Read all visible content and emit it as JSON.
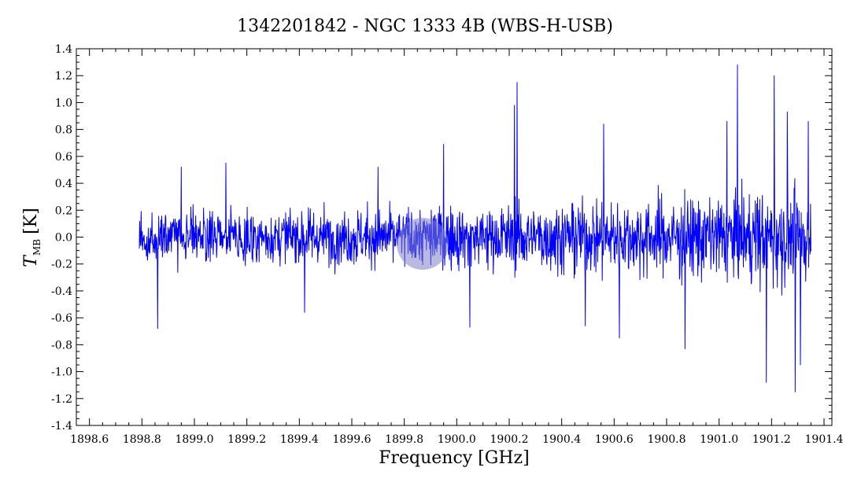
{
  "chart_data": {
    "type": "line",
    "title": "1342201842 - NGC 1333 4B (WBS-H-USB)",
    "xlabel": "Frequency [GHz]",
    "ylabel_main": "T",
    "ylabel_sub": "MB",
    "ylabel_unit": "[K]",
    "xlim": [
      1898.55,
      1901.43
    ],
    "ylim": [
      -1.4,
      1.4
    ],
    "x_ticks": [
      "1898.6",
      "1898.8",
      "1899.0",
      "1899.2",
      "1899.4",
      "1899.6",
      "1899.8",
      "1900.0",
      "1900.2",
      "1900.4",
      "1900.6",
      "1900.8",
      "1901.0",
      "1901.2",
      "1901.4"
    ],
    "y_ticks": [
      "1.4",
      "1.2",
      "1.0",
      "0.8",
      "0.6",
      "0.4",
      "0.2",
      "0.0",
      "-0.2",
      "-0.4",
      "-0.6",
      "-0.8",
      "-1.0",
      "-1.2",
      "-1.4"
    ],
    "grid": false,
    "series": [
      {
        "color": "#0000ff",
        "x_start": 1898.79,
        "x_end": 1901.35,
        "n_points": 1800,
        "baseline": 0.0,
        "noise_rms_low_freq": 0.14,
        "noise_rms_high_freq": 0.26,
        "spikes": [
          {
            "x": 1898.86,
            "y": -0.68
          },
          {
            "x": 1898.95,
            "y": 0.52
          },
          {
            "x": 1899.12,
            "y": 0.55
          },
          {
            "x": 1899.42,
            "y": -0.56
          },
          {
            "x": 1899.7,
            "y": 0.52
          },
          {
            "x": 1899.95,
            "y": 0.69
          },
          {
            "x": 1900.05,
            "y": -0.67
          },
          {
            "x": 1900.22,
            "y": 0.98
          },
          {
            "x": 1900.23,
            "y": 1.15
          },
          {
            "x": 1900.49,
            "y": -0.66
          },
          {
            "x": 1900.56,
            "y": 0.84
          },
          {
            "x": 1900.62,
            "y": -0.75
          },
          {
            "x": 1900.87,
            "y": -0.83
          },
          {
            "x": 1901.03,
            "y": 0.86
          },
          {
            "x": 1901.07,
            "y": 1.28
          },
          {
            "x": 1901.18,
            "y": -1.08
          },
          {
            "x": 1901.21,
            "y": 1.2
          },
          {
            "x": 1901.26,
            "y": 0.93
          },
          {
            "x": 1901.29,
            "y": -1.15
          },
          {
            "x": 1901.31,
            "y": -0.95
          },
          {
            "x": 1901.34,
            "y": 0.86
          }
        ]
      }
    ],
    "highlight": {
      "x": 1899.87,
      "y": -0.05,
      "color": "#8080c8"
    }
  }
}
